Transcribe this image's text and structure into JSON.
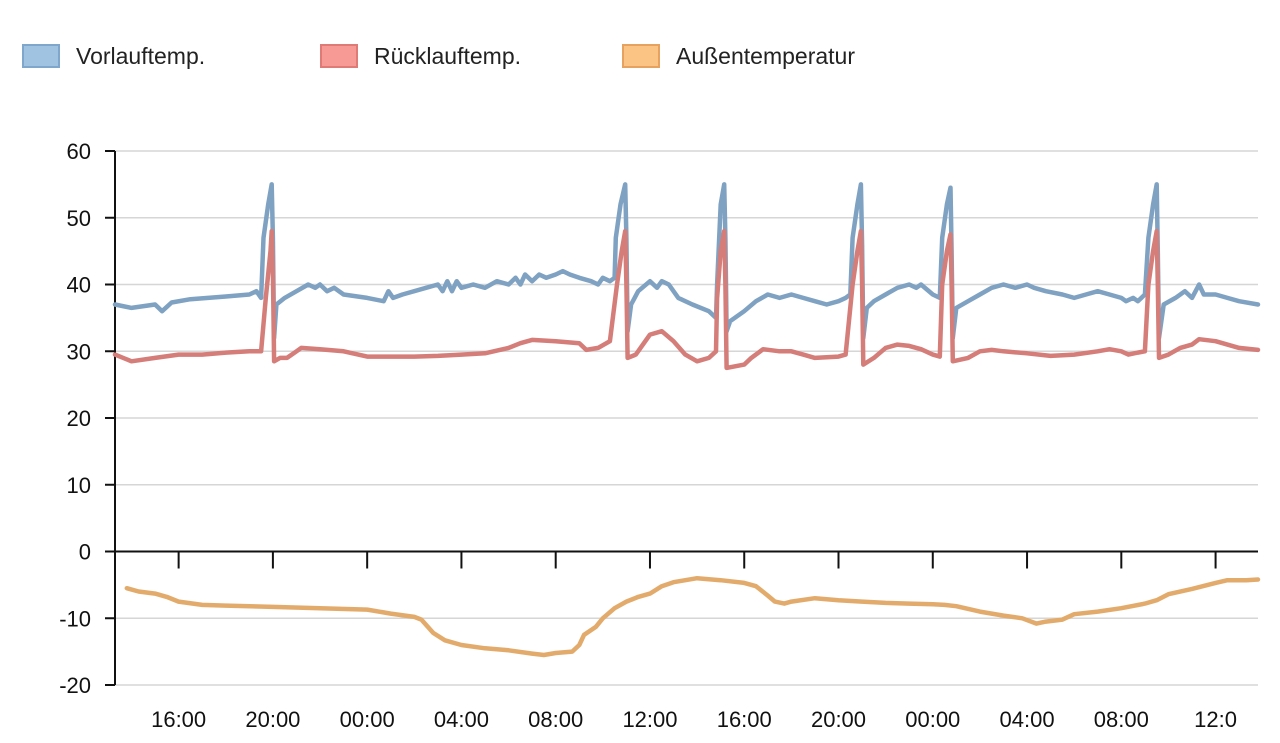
{
  "legend": [
    {
      "label": "Vorlauftemp.",
      "fill": "#9fc3e0",
      "stroke": "#7fa7cc"
    },
    {
      "label": "Rücklauftemp.",
      "fill": "#f79a95",
      "stroke": "#e07a76"
    },
    {
      "label": "Außentemperatur",
      "fill": "#fbc384",
      "stroke": "#e8a260"
    }
  ],
  "chart_data": {
    "type": "line",
    "ylim": [
      -20,
      60
    ],
    "yticks": [
      60,
      50,
      40,
      30,
      20,
      10,
      0,
      -10,
      -20
    ],
    "xlim": [
      13.3,
      61.8
    ],
    "xticks": [
      {
        "value": 16,
        "label": "16:00"
      },
      {
        "value": 20,
        "label": "20:00"
      },
      {
        "value": 24,
        "label": "00:00"
      },
      {
        "value": 28,
        "label": "04:00"
      },
      {
        "value": 32,
        "label": "08:00"
      },
      {
        "value": 36,
        "label": "12:00"
      },
      {
        "value": 40,
        "label": "16:00"
      },
      {
        "value": 44,
        "label": "20:00"
      },
      {
        "value": 48,
        "label": "00:00"
      },
      {
        "value": 52,
        "label": "04:00"
      },
      {
        "value": 56,
        "label": "08:00"
      },
      {
        "value": 60,
        "label": "12:0"
      }
    ],
    "grid": true,
    "series": [
      {
        "name": "Vorlauftemp.",
        "color": "#7fa2c2",
        "points": [
          [
            13.3,
            37
          ],
          [
            14,
            36.5
          ],
          [
            15,
            37
          ],
          [
            15.3,
            36
          ],
          [
            15.7,
            37.3
          ],
          [
            16.5,
            37.8
          ],
          [
            18,
            38.2
          ],
          [
            19,
            38.5
          ],
          [
            19.3,
            39
          ],
          [
            19.5,
            38
          ],
          [
            19.6,
            47
          ],
          [
            19.8,
            52
          ],
          [
            19.95,
            55
          ],
          [
            20.0,
            47
          ],
          [
            20.05,
            32
          ],
          [
            20.15,
            37
          ],
          [
            20.5,
            38
          ],
          [
            21,
            39
          ],
          [
            21.5,
            40
          ],
          [
            21.8,
            39.5
          ],
          [
            22,
            40
          ],
          [
            22.3,
            39
          ],
          [
            22.6,
            39.5
          ],
          [
            23,
            38.5
          ],
          [
            24,
            38
          ],
          [
            24.7,
            37.5
          ],
          [
            24.9,
            39
          ],
          [
            25.1,
            38
          ],
          [
            25.5,
            38.5
          ],
          [
            26.5,
            39.5
          ],
          [
            27,
            40
          ],
          [
            27.2,
            39
          ],
          [
            27.4,
            40.5
          ],
          [
            27.6,
            39
          ],
          [
            27.8,
            40.5
          ],
          [
            28,
            39.5
          ],
          [
            28.5,
            40
          ],
          [
            29,
            39.5
          ],
          [
            29.5,
            40.5
          ],
          [
            30,
            40
          ],
          [
            30.3,
            41
          ],
          [
            30.5,
            40
          ],
          [
            30.7,
            41.5
          ],
          [
            31,
            40.5
          ],
          [
            31.3,
            41.5
          ],
          [
            31.6,
            41
          ],
          [
            32,
            41.5
          ],
          [
            32.3,
            42
          ],
          [
            32.6,
            41.5
          ],
          [
            33,
            41
          ],
          [
            33.5,
            40.5
          ],
          [
            33.8,
            40
          ],
          [
            34,
            41
          ],
          [
            34.3,
            40.5
          ],
          [
            34.5,
            41
          ],
          [
            34.55,
            47
          ],
          [
            34.75,
            52
          ],
          [
            34.95,
            55
          ],
          [
            35.0,
            47
          ],
          [
            35.05,
            33
          ],
          [
            35.2,
            37
          ],
          [
            35.5,
            39
          ],
          [
            36,
            40.5
          ],
          [
            36.3,
            39.5
          ],
          [
            36.5,
            40.5
          ],
          [
            36.8,
            40
          ],
          [
            37.2,
            38
          ],
          [
            37.8,
            37
          ],
          [
            38.5,
            36
          ],
          [
            38.8,
            35
          ],
          [
            38.85,
            40
          ],
          [
            39.0,
            52
          ],
          [
            39.15,
            55
          ],
          [
            39.2,
            47
          ],
          [
            39.25,
            33
          ],
          [
            39.4,
            34.5
          ],
          [
            40,
            36
          ],
          [
            40.5,
            37.5
          ],
          [
            41,
            38.5
          ],
          [
            41.5,
            38
          ],
          [
            42,
            38.5
          ],
          [
            42.5,
            38
          ],
          [
            43,
            37.5
          ],
          [
            43.5,
            37
          ],
          [
            44,
            37.5
          ],
          [
            44.3,
            38
          ],
          [
            44.5,
            38.5
          ],
          [
            44.6,
            47
          ],
          [
            44.8,
            52
          ],
          [
            44.95,
            55
          ],
          [
            45.0,
            46
          ],
          [
            45.05,
            32
          ],
          [
            45.2,
            36.5
          ],
          [
            45.5,
            37.5
          ],
          [
            46,
            38.5
          ],
          [
            46.5,
            39.5
          ],
          [
            47,
            40
          ],
          [
            47.3,
            39.5
          ],
          [
            47.5,
            40
          ],
          [
            48,
            38.5
          ],
          [
            48.3,
            38
          ],
          [
            48.4,
            47
          ],
          [
            48.6,
            52
          ],
          [
            48.75,
            54.5
          ],
          [
            48.8,
            45
          ],
          [
            48.85,
            32
          ],
          [
            49,
            36.5
          ],
          [
            49.5,
            37.5
          ],
          [
            50,
            38.5
          ],
          [
            50.5,
            39.5
          ],
          [
            51,
            40
          ],
          [
            51.5,
            39.5
          ],
          [
            52,
            40
          ],
          [
            52.3,
            39.5
          ],
          [
            52.8,
            39
          ],
          [
            53.5,
            38.5
          ],
          [
            54,
            38
          ],
          [
            54.5,
            38.5
          ],
          [
            55,
            39
          ],
          [
            55.5,
            38.5
          ],
          [
            56,
            38
          ],
          [
            56.2,
            37.5
          ],
          [
            56.5,
            38
          ],
          [
            56.7,
            37.5
          ],
          [
            57,
            38.5
          ],
          [
            57.15,
            47
          ],
          [
            57.35,
            52
          ],
          [
            57.5,
            55
          ],
          [
            57.55,
            45
          ],
          [
            57.6,
            32
          ],
          [
            57.8,
            37
          ],
          [
            58.3,
            38
          ],
          [
            58.7,
            39
          ],
          [
            59,
            38
          ],
          [
            59.3,
            40
          ],
          [
            59.5,
            38.5
          ],
          [
            60,
            38.5
          ],
          [
            60.5,
            38
          ],
          [
            61,
            37.5
          ],
          [
            61.8,
            37
          ]
        ]
      },
      {
        "name": "Rücklauftemp.",
        "color": "#d47d79",
        "points": [
          [
            13.3,
            29.5
          ],
          [
            14,
            28.5
          ],
          [
            15,
            29
          ],
          [
            16,
            29.5
          ],
          [
            17,
            29.5
          ],
          [
            18,
            29.8
          ],
          [
            19,
            30
          ],
          [
            19.5,
            30
          ],
          [
            19.7,
            38
          ],
          [
            19.9,
            45
          ],
          [
            19.95,
            48
          ],
          [
            20.0,
            42
          ],
          [
            20.05,
            28.5
          ],
          [
            20.3,
            29
          ],
          [
            20.6,
            29
          ],
          [
            21,
            30
          ],
          [
            21.2,
            30.5
          ],
          [
            22,
            30.3
          ],
          [
            23,
            30
          ],
          [
            24,
            29.2
          ],
          [
            25,
            29.2
          ],
          [
            26,
            29.2
          ],
          [
            27,
            29.3
          ],
          [
            28,
            29.5
          ],
          [
            29,
            29.7
          ],
          [
            30,
            30.5
          ],
          [
            30.5,
            31.2
          ],
          [
            31,
            31.7
          ],
          [
            32,
            31.5
          ],
          [
            33,
            31.2
          ],
          [
            33.3,
            30.2
          ],
          [
            33.8,
            30.5
          ],
          [
            34.3,
            31.5
          ],
          [
            34.6,
            40
          ],
          [
            34.8,
            45
          ],
          [
            34.95,
            48
          ],
          [
            35.0,
            40
          ],
          [
            35.05,
            29
          ],
          [
            35.4,
            29.5
          ],
          [
            35.7,
            31
          ],
          [
            36,
            32.5
          ],
          [
            36.5,
            33
          ],
          [
            37,
            31.5
          ],
          [
            37.5,
            29.5
          ],
          [
            38,
            28.5
          ],
          [
            38.5,
            29
          ],
          [
            38.8,
            30
          ],
          [
            38.85,
            38
          ],
          [
            39.0,
            45
          ],
          [
            39.15,
            48
          ],
          [
            39.2,
            40
          ],
          [
            39.25,
            27.5
          ],
          [
            40,
            28
          ],
          [
            40.3,
            29
          ],
          [
            40.8,
            30.3
          ],
          [
            41.5,
            30
          ],
          [
            42,
            30
          ],
          [
            42.5,
            29.5
          ],
          [
            43,
            29
          ],
          [
            44,
            29.2
          ],
          [
            44.3,
            29.5
          ],
          [
            44.6,
            40
          ],
          [
            44.8,
            45
          ],
          [
            44.95,
            48
          ],
          [
            45.0,
            40
          ],
          [
            45.05,
            28
          ],
          [
            45.5,
            29
          ],
          [
            46,
            30.5
          ],
          [
            46.5,
            31
          ],
          [
            47,
            30.8
          ],
          [
            47.5,
            30.3
          ],
          [
            48,
            29.5
          ],
          [
            48.3,
            29.2
          ],
          [
            48.4,
            40
          ],
          [
            48.6,
            45
          ],
          [
            48.75,
            47.5
          ],
          [
            48.8,
            40
          ],
          [
            48.85,
            28.5
          ],
          [
            49.5,
            29
          ],
          [
            50,
            30
          ],
          [
            50.5,
            30.2
          ],
          [
            51,
            30
          ],
          [
            52,
            29.7
          ],
          [
            53,
            29.3
          ],
          [
            54,
            29.5
          ],
          [
            55,
            30
          ],
          [
            55.5,
            30.3
          ],
          [
            56,
            30
          ],
          [
            56.3,
            29.5
          ],
          [
            56.7,
            29.8
          ],
          [
            57,
            30
          ],
          [
            57.15,
            40
          ],
          [
            57.35,
            45
          ],
          [
            57.5,
            48
          ],
          [
            57.55,
            40
          ],
          [
            57.6,
            29
          ],
          [
            58,
            29.5
          ],
          [
            58.5,
            30.5
          ],
          [
            59,
            31
          ],
          [
            59.3,
            31.8
          ],
          [
            60,
            31.5
          ],
          [
            61,
            30.5
          ],
          [
            61.8,
            30.2
          ]
        ]
      },
      {
        "name": "Außentemperatur",
        "color": "#e2ab6c",
        "points": [
          [
            13.8,
            -5.5
          ],
          [
            14.3,
            -6
          ],
          [
            15,
            -6.3
          ],
          [
            15.5,
            -6.8
          ],
          [
            16,
            -7.5
          ],
          [
            17,
            -8
          ],
          [
            18,
            -8.1
          ],
          [
            20,
            -8.3
          ],
          [
            22,
            -8.5
          ],
          [
            24,
            -8.7
          ],
          [
            25,
            -9.3
          ],
          [
            26,
            -9.8
          ],
          [
            26.3,
            -10.2
          ],
          [
            26.8,
            -12.2
          ],
          [
            27.3,
            -13.3
          ],
          [
            28,
            -14
          ],
          [
            29,
            -14.5
          ],
          [
            30,
            -14.8
          ],
          [
            31,
            -15.3
          ],
          [
            31.5,
            -15.5
          ],
          [
            32,
            -15.2
          ],
          [
            32.7,
            -15
          ],
          [
            33,
            -14
          ],
          [
            33.2,
            -12.5
          ],
          [
            33.7,
            -11.3
          ],
          [
            34,
            -10
          ],
          [
            34.5,
            -8.5
          ],
          [
            35,
            -7.5
          ],
          [
            35.5,
            -6.8
          ],
          [
            36,
            -6.3
          ],
          [
            36.5,
            -5.2
          ],
          [
            37,
            -4.6
          ],
          [
            38,
            -4
          ],
          [
            39,
            -4.3
          ],
          [
            40,
            -4.7
          ],
          [
            40.5,
            -5.2
          ],
          [
            41,
            -6.6
          ],
          [
            41.3,
            -7.5
          ],
          [
            41.7,
            -7.8
          ],
          [
            42,
            -7.5
          ],
          [
            43,
            -7
          ],
          [
            44,
            -7.3
          ],
          [
            45,
            -7.5
          ],
          [
            46,
            -7.7
          ],
          [
            47,
            -7.8
          ],
          [
            48,
            -7.9
          ],
          [
            48.5,
            -8
          ],
          [
            49,
            -8.2
          ],
          [
            50,
            -9
          ],
          [
            51,
            -9.6
          ],
          [
            51.8,
            -10
          ],
          [
            52.4,
            -10.8
          ],
          [
            52.8,
            -10.5
          ],
          [
            53.5,
            -10.2
          ],
          [
            54,
            -9.4
          ],
          [
            55,
            -9.0
          ],
          [
            56,
            -8.5
          ],
          [
            57,
            -7.8
          ],
          [
            57.5,
            -7.3
          ],
          [
            58,
            -6.4
          ],
          [
            59,
            -5.6
          ],
          [
            60,
            -4.7
          ],
          [
            60.5,
            -4.3
          ],
          [
            61.3,
            -4.3
          ],
          [
            61.8,
            -4.2
          ]
        ]
      }
    ]
  }
}
